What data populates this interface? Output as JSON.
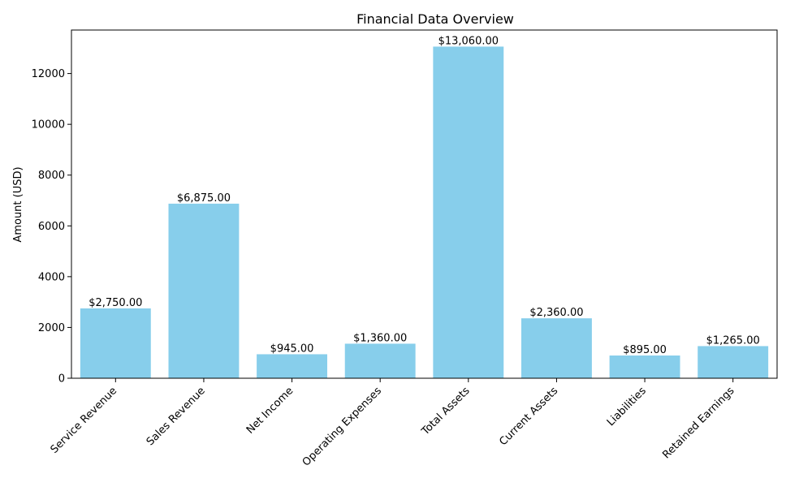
{
  "chart_data": {
    "type": "bar",
    "title": "Financial Data Overview",
    "xlabel": "",
    "ylabel": "Amount (USD)",
    "categories": [
      "Service Revenue",
      "Sales Revenue",
      "Net Income",
      "Operating Expenses",
      "Total Assets",
      "Current Assets",
      "Liabilities",
      "Retained Earnings"
    ],
    "values": [
      2750,
      6875,
      945,
      1360,
      13060,
      2360,
      895,
      1265
    ],
    "data_labels": [
      "$2,750.00",
      "$6,875.00",
      "$945.00",
      "$1,360.00",
      "$13,060.00",
      "$2,360.00",
      "$895.00",
      "$1,265.00"
    ],
    "y_ticks": [
      0,
      2000,
      4000,
      6000,
      8000,
      10000,
      12000
    ],
    "ylim": [
      0,
      13713
    ],
    "bar_color": "#87ceeb",
    "grid": false,
    "legend": "none"
  }
}
